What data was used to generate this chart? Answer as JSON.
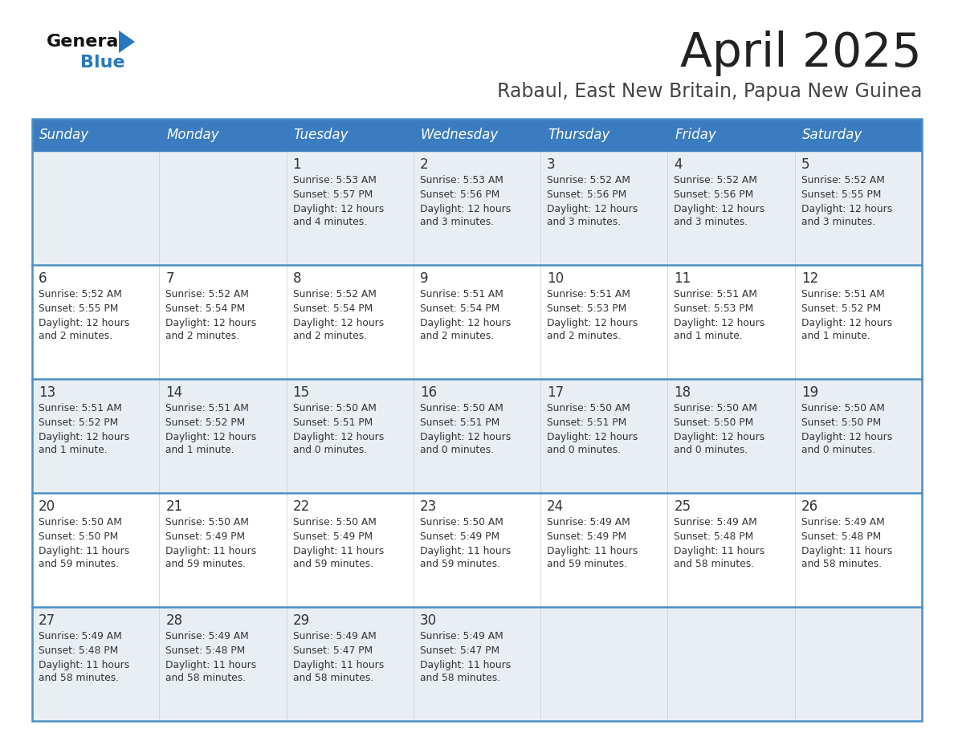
{
  "title": "April 2025",
  "subtitle": "Rabaul, East New Britain, Papua New Guinea",
  "days_of_week": [
    "Sunday",
    "Monday",
    "Tuesday",
    "Wednesday",
    "Thursday",
    "Friday",
    "Saturday"
  ],
  "header_bg": "#3a7cbf",
  "header_text": "#ffffff",
  "row_bg_light": "#e8eef4",
  "row_bg_white": "#ffffff",
  "border_color": "#4a90c4",
  "title_color": "#222222",
  "subtitle_color": "#444444",
  "day_num_color": "#333333",
  "cell_text_color": "#333333",
  "logo_black": "#111111",
  "logo_blue": "#2878c0",
  "calendar": [
    [
      {
        "day": null,
        "sunrise": null,
        "sunset": null,
        "daylight_line1": null,
        "daylight_line2": null
      },
      {
        "day": null,
        "sunrise": null,
        "sunset": null,
        "daylight_line1": null,
        "daylight_line2": null
      },
      {
        "day": "1",
        "sunrise": "5:53 AM",
        "sunset": "5:57 PM",
        "daylight_line1": "Daylight: 12 hours",
        "daylight_line2": "and 4 minutes."
      },
      {
        "day": "2",
        "sunrise": "5:53 AM",
        "sunset": "5:56 PM",
        "daylight_line1": "Daylight: 12 hours",
        "daylight_line2": "and 3 minutes."
      },
      {
        "day": "3",
        "sunrise": "5:52 AM",
        "sunset": "5:56 PM",
        "daylight_line1": "Daylight: 12 hours",
        "daylight_line2": "and 3 minutes."
      },
      {
        "day": "4",
        "sunrise": "5:52 AM",
        "sunset": "5:56 PM",
        "daylight_line1": "Daylight: 12 hours",
        "daylight_line2": "and 3 minutes."
      },
      {
        "day": "5",
        "sunrise": "5:52 AM",
        "sunset": "5:55 PM",
        "daylight_line1": "Daylight: 12 hours",
        "daylight_line2": "and 3 minutes."
      }
    ],
    [
      {
        "day": "6",
        "sunrise": "5:52 AM",
        "sunset": "5:55 PM",
        "daylight_line1": "Daylight: 12 hours",
        "daylight_line2": "and 2 minutes."
      },
      {
        "day": "7",
        "sunrise": "5:52 AM",
        "sunset": "5:54 PM",
        "daylight_line1": "Daylight: 12 hours",
        "daylight_line2": "and 2 minutes."
      },
      {
        "day": "8",
        "sunrise": "5:52 AM",
        "sunset": "5:54 PM",
        "daylight_line1": "Daylight: 12 hours",
        "daylight_line2": "and 2 minutes."
      },
      {
        "day": "9",
        "sunrise": "5:51 AM",
        "sunset": "5:54 PM",
        "daylight_line1": "Daylight: 12 hours",
        "daylight_line2": "and 2 minutes."
      },
      {
        "day": "10",
        "sunrise": "5:51 AM",
        "sunset": "5:53 PM",
        "daylight_line1": "Daylight: 12 hours",
        "daylight_line2": "and 2 minutes."
      },
      {
        "day": "11",
        "sunrise": "5:51 AM",
        "sunset": "5:53 PM",
        "daylight_line1": "Daylight: 12 hours",
        "daylight_line2": "and 1 minute."
      },
      {
        "day": "12",
        "sunrise": "5:51 AM",
        "sunset": "5:52 PM",
        "daylight_line1": "Daylight: 12 hours",
        "daylight_line2": "and 1 minute."
      }
    ],
    [
      {
        "day": "13",
        "sunrise": "5:51 AM",
        "sunset": "5:52 PM",
        "daylight_line1": "Daylight: 12 hours",
        "daylight_line2": "and 1 minute."
      },
      {
        "day": "14",
        "sunrise": "5:51 AM",
        "sunset": "5:52 PM",
        "daylight_line1": "Daylight: 12 hours",
        "daylight_line2": "and 1 minute."
      },
      {
        "day": "15",
        "sunrise": "5:50 AM",
        "sunset": "5:51 PM",
        "daylight_line1": "Daylight: 12 hours",
        "daylight_line2": "and 0 minutes."
      },
      {
        "day": "16",
        "sunrise": "5:50 AM",
        "sunset": "5:51 PM",
        "daylight_line1": "Daylight: 12 hours",
        "daylight_line2": "and 0 minutes."
      },
      {
        "day": "17",
        "sunrise": "5:50 AM",
        "sunset": "5:51 PM",
        "daylight_line1": "Daylight: 12 hours",
        "daylight_line2": "and 0 minutes."
      },
      {
        "day": "18",
        "sunrise": "5:50 AM",
        "sunset": "5:50 PM",
        "daylight_line1": "Daylight: 12 hours",
        "daylight_line2": "and 0 minutes."
      },
      {
        "day": "19",
        "sunrise": "5:50 AM",
        "sunset": "5:50 PM",
        "daylight_line1": "Daylight: 12 hours",
        "daylight_line2": "and 0 minutes."
      }
    ],
    [
      {
        "day": "20",
        "sunrise": "5:50 AM",
        "sunset": "5:50 PM",
        "daylight_line1": "Daylight: 11 hours",
        "daylight_line2": "and 59 minutes."
      },
      {
        "day": "21",
        "sunrise": "5:50 AM",
        "sunset": "5:49 PM",
        "daylight_line1": "Daylight: 11 hours",
        "daylight_line2": "and 59 minutes."
      },
      {
        "day": "22",
        "sunrise": "5:50 AM",
        "sunset": "5:49 PM",
        "daylight_line1": "Daylight: 11 hours",
        "daylight_line2": "and 59 minutes."
      },
      {
        "day": "23",
        "sunrise": "5:50 AM",
        "sunset": "5:49 PM",
        "daylight_line1": "Daylight: 11 hours",
        "daylight_line2": "and 59 minutes."
      },
      {
        "day": "24",
        "sunrise": "5:49 AM",
        "sunset": "5:49 PM",
        "daylight_line1": "Daylight: 11 hours",
        "daylight_line2": "and 59 minutes."
      },
      {
        "day": "25",
        "sunrise": "5:49 AM",
        "sunset": "5:48 PM",
        "daylight_line1": "Daylight: 11 hours",
        "daylight_line2": "and 58 minutes."
      },
      {
        "day": "26",
        "sunrise": "5:49 AM",
        "sunset": "5:48 PM",
        "daylight_line1": "Daylight: 11 hours",
        "daylight_line2": "and 58 minutes."
      }
    ],
    [
      {
        "day": "27",
        "sunrise": "5:49 AM",
        "sunset": "5:48 PM",
        "daylight_line1": "Daylight: 11 hours",
        "daylight_line2": "and 58 minutes."
      },
      {
        "day": "28",
        "sunrise": "5:49 AM",
        "sunset": "5:48 PM",
        "daylight_line1": "Daylight: 11 hours",
        "daylight_line2": "and 58 minutes."
      },
      {
        "day": "29",
        "sunrise": "5:49 AM",
        "sunset": "5:47 PM",
        "daylight_line1": "Daylight: 11 hours",
        "daylight_line2": "and 58 minutes."
      },
      {
        "day": "30",
        "sunrise": "5:49 AM",
        "sunset": "5:47 PM",
        "daylight_line1": "Daylight: 11 hours",
        "daylight_line2": "and 58 minutes."
      },
      {
        "day": null,
        "sunrise": null,
        "sunset": null,
        "daylight_line1": null,
        "daylight_line2": null
      },
      {
        "day": null,
        "sunrise": null,
        "sunset": null,
        "daylight_line1": null,
        "daylight_line2": null
      },
      {
        "day": null,
        "sunrise": null,
        "sunset": null,
        "daylight_line1": null,
        "daylight_line2": null
      }
    ]
  ]
}
